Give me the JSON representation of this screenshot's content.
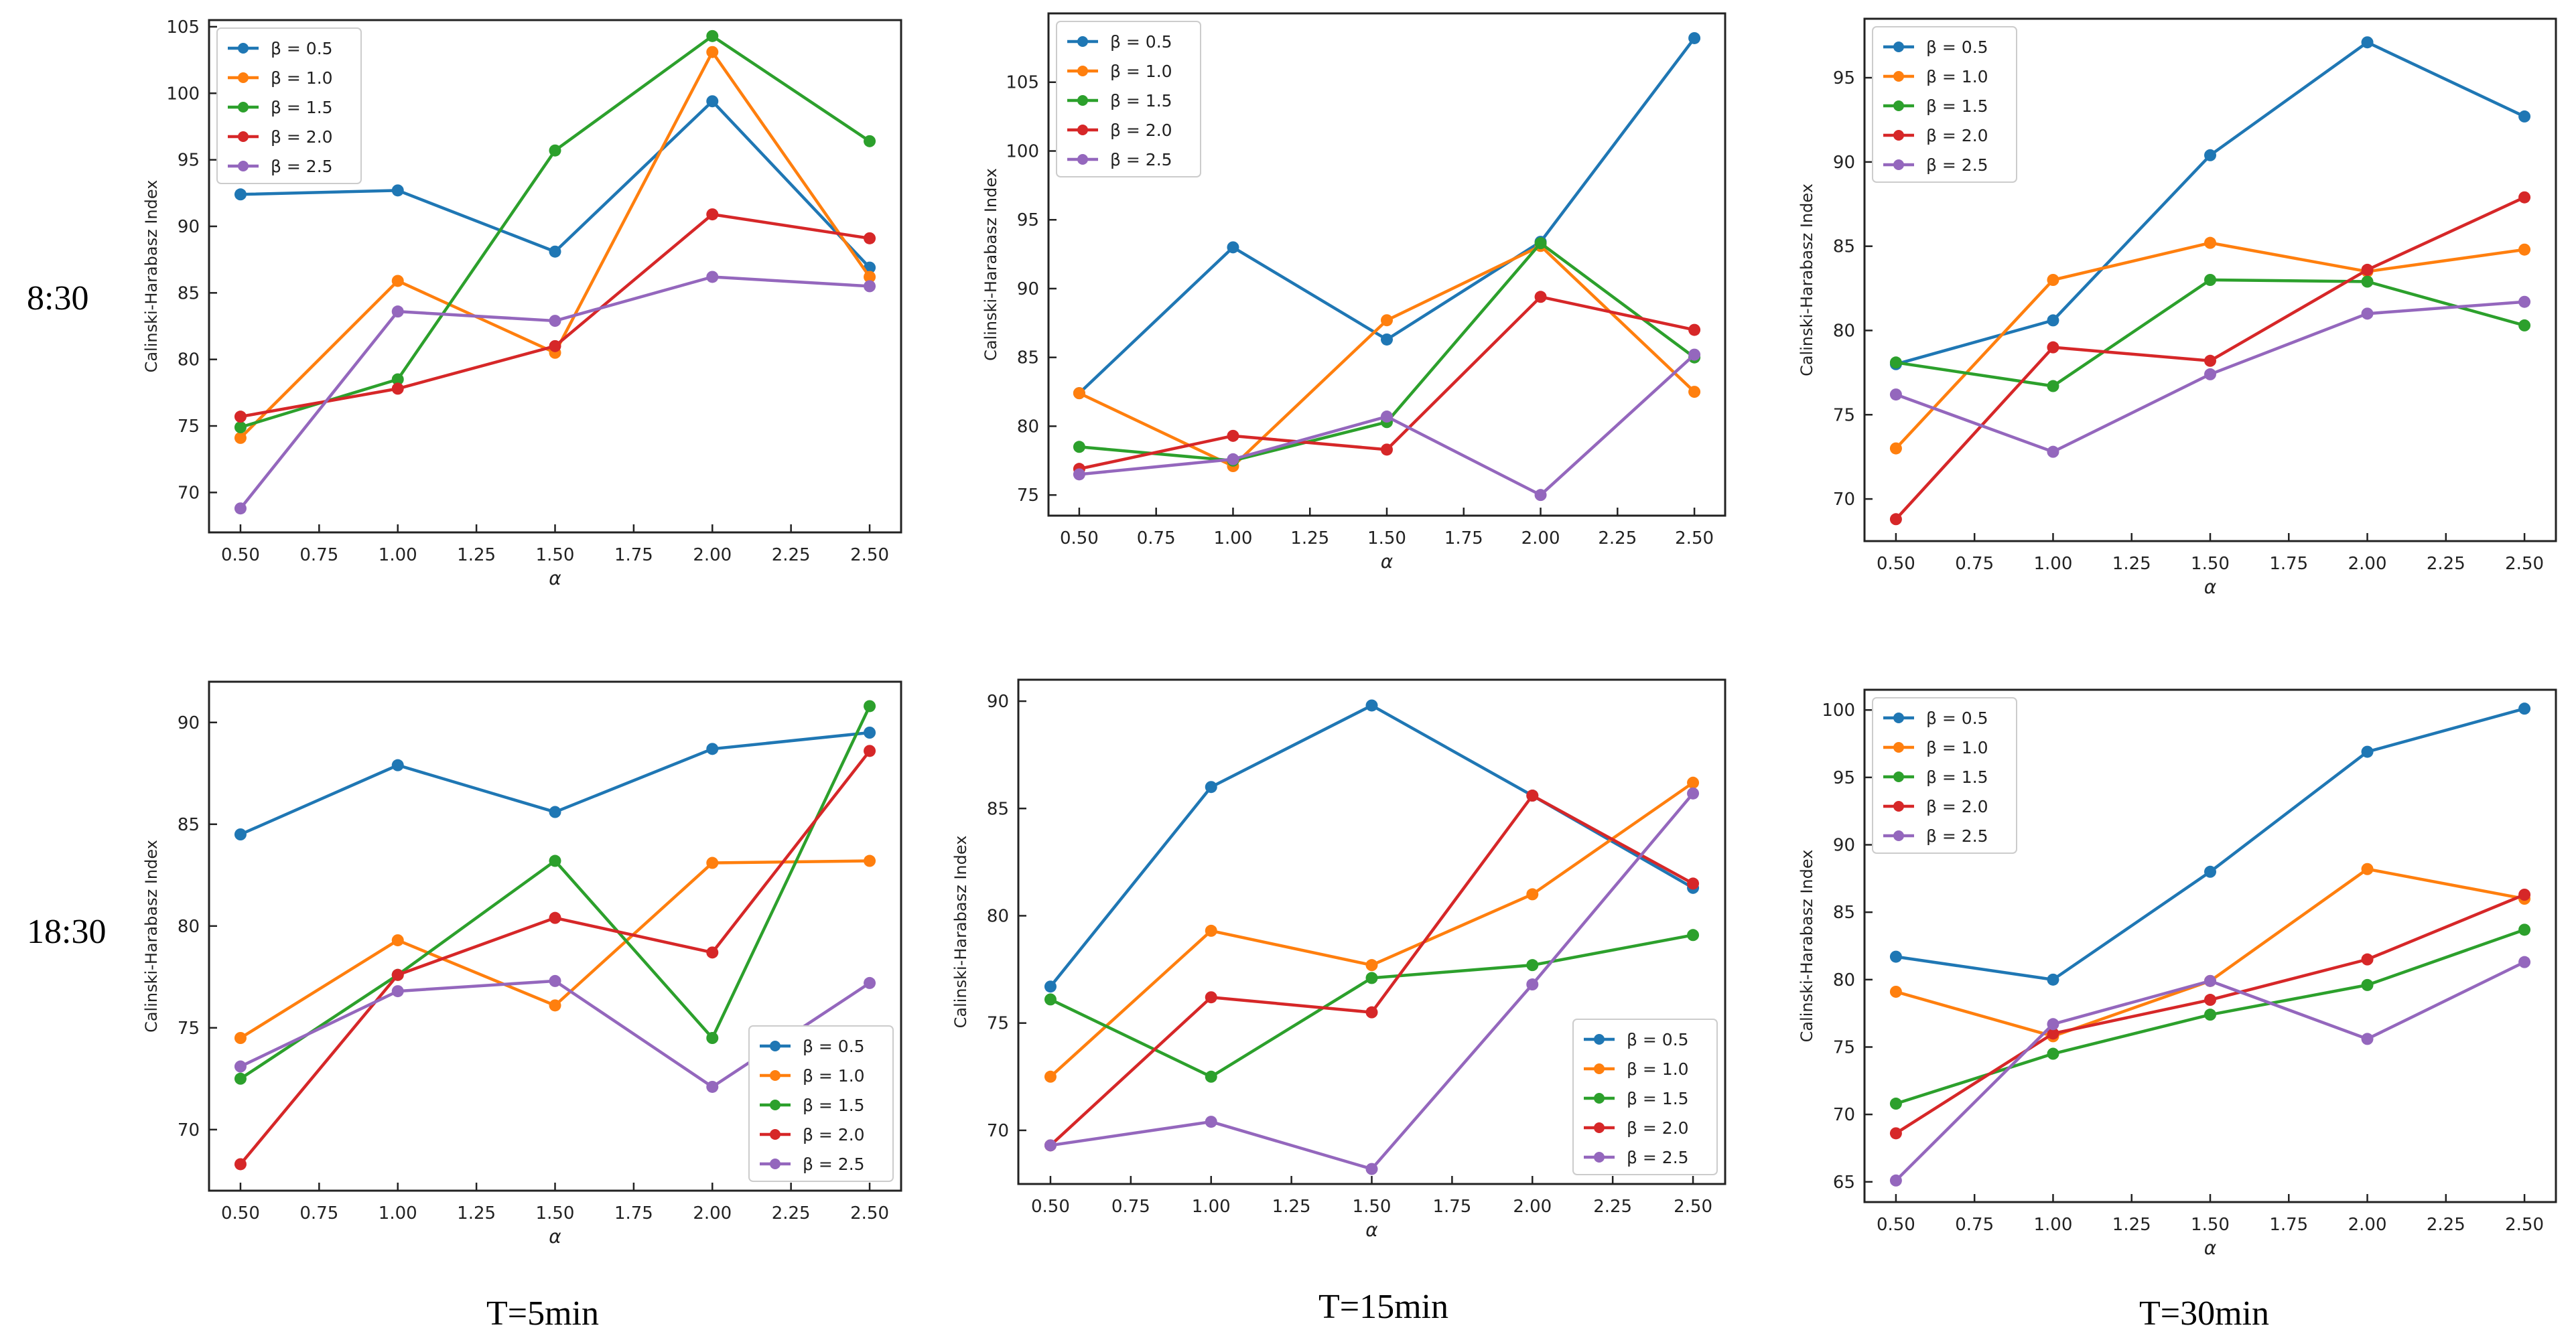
{
  "figure": {
    "row_labels": [
      "8:30",
      "18:30"
    ],
    "col_labels": [
      "T=5min",
      "T=15min",
      "T=30min"
    ],
    "ylabel": "Calinski-Harabasz Index",
    "xlabel": "α",
    "x_ticks": [
      "0.50",
      "0.75",
      "1.00",
      "1.25",
      "1.50",
      "1.75",
      "2.00",
      "2.25",
      "2.50"
    ]
  },
  "series_style": {
    "names": [
      "β = 0.5",
      "β = 1.0",
      "β = 1.5",
      "β = 2.0",
      "β = 2.5"
    ],
    "colors": [
      "#1f77b4",
      "#ff7f0e",
      "#2ca02c",
      "#d62728",
      "#9467bd"
    ]
  },
  "chart_data": [
    {
      "type": "line",
      "title": "8:30, T=5min",
      "x": [
        0.5,
        1.0,
        1.5,
        2.0,
        2.5
      ],
      "xlim": [
        0.4,
        2.6
      ],
      "ylim": [
        67,
        105.5
      ],
      "yticks": [
        70,
        75,
        80,
        85,
        90,
        95,
        100,
        105
      ],
      "legend": "top-left",
      "series": [
        {
          "name": "β = 0.5",
          "values": [
            92.4,
            92.7,
            88.1,
            99.4,
            86.9
          ]
        },
        {
          "name": "β = 1.0",
          "values": [
            74.1,
            85.9,
            80.5,
            103.1,
            86.2
          ]
        },
        {
          "name": "β = 1.5",
          "values": [
            74.9,
            78.5,
            95.7,
            104.3,
            96.4
          ]
        },
        {
          "name": "β = 2.0",
          "values": [
            75.7,
            77.8,
            81.0,
            90.9,
            89.1
          ]
        },
        {
          "name": "β = 2.5",
          "values": [
            68.8,
            83.6,
            82.9,
            86.2,
            85.5
          ]
        }
      ]
    },
    {
      "type": "line",
      "title": "8:30, T=15min",
      "x": [
        0.5,
        1.0,
        1.5,
        2.0,
        2.5
      ],
      "xlim": [
        0.4,
        2.6
      ],
      "ylim": [
        73.5,
        110
      ],
      "yticks": [
        75,
        80,
        85,
        90,
        95,
        100,
        105
      ],
      "legend": "top-left",
      "series": [
        {
          "name": "β = 0.5",
          "values": [
            82.4,
            93.0,
            86.3,
            93.4,
            108.2
          ]
        },
        {
          "name": "β = 1.0",
          "values": [
            82.4,
            77.1,
            87.7,
            93.1,
            82.5
          ]
        },
        {
          "name": "β = 1.5",
          "values": [
            78.5,
            77.5,
            80.3,
            93.3,
            85.0
          ]
        },
        {
          "name": "β = 2.0",
          "values": [
            76.9,
            79.3,
            78.3,
            89.4,
            87.0
          ]
        },
        {
          "name": "β = 2.5",
          "values": [
            76.5,
            77.6,
            80.7,
            75.0,
            85.2
          ]
        }
      ]
    },
    {
      "type": "line",
      "title": "8:30, T=30min",
      "x": [
        0.5,
        1.0,
        1.5,
        2.0,
        2.5
      ],
      "xlim": [
        0.4,
        2.6
      ],
      "ylim": [
        67.5,
        98.5
      ],
      "yticks": [
        70,
        75,
        80,
        85,
        90,
        95
      ],
      "legend": "top-left",
      "series": [
        {
          "name": "β = 0.5",
          "values": [
            78.0,
            80.6,
            90.4,
            97.1,
            92.7
          ]
        },
        {
          "name": "β = 1.0",
          "values": [
            73.0,
            83.0,
            85.2,
            83.5,
            84.8
          ]
        },
        {
          "name": "β = 1.5",
          "values": [
            78.1,
            76.7,
            83.0,
            82.9,
            80.3
          ]
        },
        {
          "name": "β = 2.0",
          "values": [
            68.8,
            79.0,
            78.2,
            83.6,
            87.9
          ]
        },
        {
          "name": "β = 2.5",
          "values": [
            76.2,
            72.8,
            77.4,
            81.0,
            81.7
          ]
        }
      ]
    },
    {
      "type": "line",
      "title": "18:30, T=5min",
      "x": [
        0.5,
        1.0,
        1.5,
        2.0,
        2.5
      ],
      "xlim": [
        0.4,
        2.6
      ],
      "ylim": [
        67,
        92
      ],
      "yticks": [
        70,
        75,
        80,
        85,
        90
      ],
      "legend": "bottom-right",
      "series": [
        {
          "name": "β = 0.5",
          "values": [
            84.5,
            87.9,
            85.6,
            88.7,
            89.5
          ]
        },
        {
          "name": "β = 1.0",
          "values": [
            74.5,
            79.3,
            76.1,
            83.1,
            83.2
          ]
        },
        {
          "name": "β = 1.5",
          "values": [
            72.5,
            77.6,
            83.2,
            74.5,
            90.8
          ]
        },
        {
          "name": "β = 2.0",
          "values": [
            68.3,
            77.6,
            80.4,
            78.7,
            88.6
          ]
        },
        {
          "name": "β = 2.5",
          "values": [
            73.1,
            76.8,
            77.3,
            72.1,
            77.2
          ]
        }
      ]
    },
    {
      "type": "line",
      "title": "18:30, T=15min",
      "x": [
        0.5,
        1.0,
        1.5,
        2.0,
        2.5
      ],
      "xlim": [
        0.4,
        2.6
      ],
      "ylim": [
        67.5,
        91
      ],
      "yticks": [
        70,
        75,
        80,
        85,
        90
      ],
      "legend": "bottom-right",
      "series": [
        {
          "name": "β = 0.5",
          "values": [
            76.7,
            86.0,
            89.8,
            85.6,
            81.3
          ]
        },
        {
          "name": "β = 1.0",
          "values": [
            72.5,
            79.3,
            77.7,
            81.0,
            86.2
          ]
        },
        {
          "name": "β = 1.5",
          "values": [
            76.1,
            72.5,
            77.1,
            77.7,
            79.1
          ]
        },
        {
          "name": "β = 2.0",
          "values": [
            69.3,
            76.2,
            75.5,
            85.6,
            81.5
          ]
        },
        {
          "name": "β = 2.5",
          "values": [
            69.3,
            70.4,
            68.2,
            76.8,
            85.7
          ]
        }
      ]
    },
    {
      "type": "line",
      "title": "18:30, T=30min",
      "x": [
        0.5,
        1.0,
        1.5,
        2.0,
        2.5
      ],
      "xlim": [
        0.4,
        2.6
      ],
      "ylim": [
        63.5,
        101.5
      ],
      "yticks": [
        65,
        70,
        75,
        80,
        85,
        90,
        95,
        100
      ],
      "legend": "top-left",
      "series": [
        {
          "name": "β = 0.5",
          "values": [
            81.7,
            80.0,
            88.0,
            96.9,
            100.1
          ]
        },
        {
          "name": "β = 1.0",
          "values": [
            79.1,
            75.8,
            79.9,
            88.2,
            86.0
          ]
        },
        {
          "name": "β = 1.5",
          "values": [
            70.8,
            74.5,
            77.4,
            79.6,
            83.7
          ]
        },
        {
          "name": "β = 2.0",
          "values": [
            68.6,
            76.0,
            78.5,
            81.5,
            86.3
          ]
        },
        {
          "name": "β = 2.5",
          "values": [
            65.1,
            76.7,
            79.9,
            75.6,
            81.3
          ]
        }
      ]
    }
  ]
}
